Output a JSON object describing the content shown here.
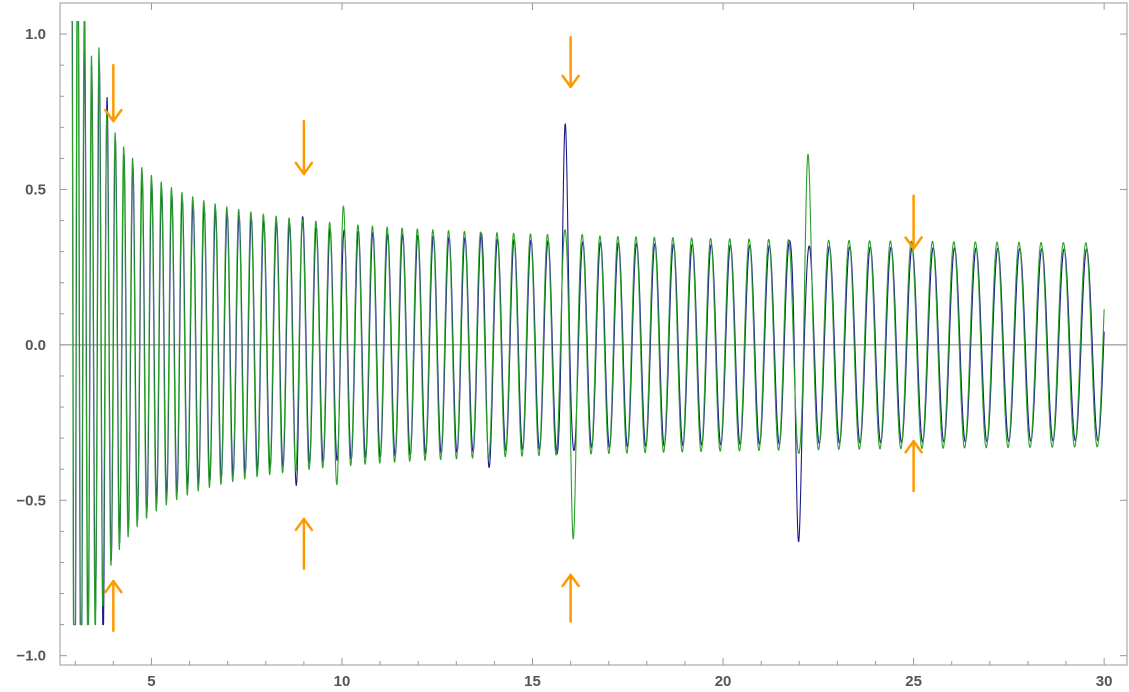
{
  "chart_data": {
    "type": "line",
    "title": "",
    "xlabel": "",
    "ylabel": "",
    "xlim": [
      2.6,
      30.6
    ],
    "ylim": [
      -1.03,
      1.1
    ],
    "x_ticks": [
      {
        "value": 5,
        "label": "5"
      },
      {
        "value": 10,
        "label": "10"
      },
      {
        "value": 15,
        "label": "15"
      },
      {
        "value": 20,
        "label": "20"
      },
      {
        "value": 25,
        "label": "25"
      },
      {
        "value": 30,
        "label": "30"
      }
    ],
    "y_ticks": [
      {
        "value": 1.0,
        "label": "1.0"
      },
      {
        "value": 0.5,
        "label": "0.5"
      },
      {
        "value": 0.0,
        "label": "0.0"
      },
      {
        "value": -0.5,
        "label": "−0.5"
      },
      {
        "value": -1.0,
        "label": "−1.0"
      }
    ],
    "grid": false,
    "legend": "none",
    "x_range": [
      2.9,
      30.0
    ],
    "series": [
      {
        "color": "#1a1a8c",
        "phase_shift": 0.0,
        "plateau": 0.28,
        "spikes": [
          [
            3.05,
            0.18
          ],
          [
            3.72,
            0.2
          ],
          [
            8.85,
            0.08
          ],
          [
            13.8,
            0.07
          ],
          [
            15.85,
            0.38
          ],
          [
            21.95,
            0.35
          ]
        ]
      },
      {
        "color": "#2ca02c",
        "phase_shift": 0.22,
        "plateau": 0.3,
        "spikes": [
          [
            3.05,
            0.15
          ],
          [
            3.62,
            0.14
          ],
          [
            9.95,
            0.1
          ],
          [
            16.05,
            0.28
          ],
          [
            22.2,
            0.3
          ]
        ]
      }
    ],
    "arrows": [
      {
        "x": 4.0,
        "dir": "down",
        "y_from": 0.9,
        "y_to": 0.72
      },
      {
        "x": 4.0,
        "dir": "up",
        "y_from": -0.92,
        "y_to": -0.76
      },
      {
        "x": 9.0,
        "dir": "down",
        "y_from": 0.72,
        "y_to": 0.55
      },
      {
        "x": 9.0,
        "dir": "up",
        "y_from": -0.72,
        "y_to": -0.56
      },
      {
        "x": 16.0,
        "dir": "down",
        "y_from": 0.99,
        "y_to": 0.83
      },
      {
        "x": 16.0,
        "dir": "up",
        "y_from": -0.89,
        "y_to": -0.74
      },
      {
        "x": 25.0,
        "dir": "down",
        "y_from": 0.48,
        "y_to": 0.31
      },
      {
        "x": 25.0,
        "dir": "up",
        "y_from": -0.47,
        "y_to": -0.31
      }
    ],
    "colors": {
      "axis": "#999999",
      "zero_line": "#808080",
      "arrow": "#ff9900"
    }
  }
}
